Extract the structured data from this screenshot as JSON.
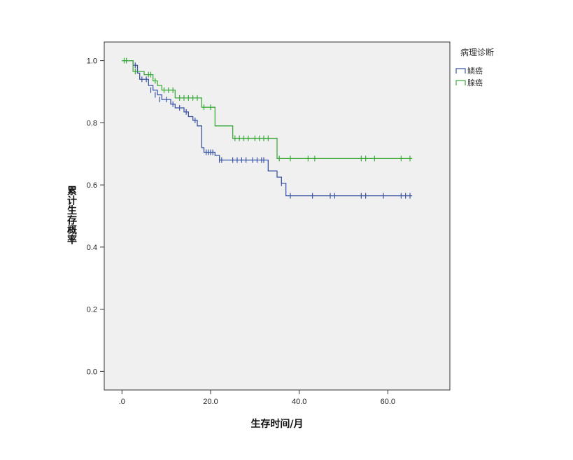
{
  "chart_data": {
    "type": "line",
    "subtype": "kaplan-meier",
    "title": "",
    "xlabel": "生存时间/月",
    "ylabel": "累计生存概率",
    "xlim": [
      -4,
      74
    ],
    "ylim": [
      -0.06,
      1.06
    ],
    "xticks": [
      0,
      20,
      40,
      60
    ],
    "xtick_labels": [
      ".0",
      "20.0",
      "40.0",
      "60.0"
    ],
    "yticks": [
      0,
      0.2,
      0.4,
      0.6,
      0.8,
      1.0
    ],
    "ytick_labels": [
      "0.0",
      "0.2",
      "0.4",
      "0.6",
      "0.8",
      "1.0"
    ],
    "grid": false,
    "legend": {
      "title": "病理诊断",
      "position": "top-right"
    },
    "series": [
      {
        "name": "鳞癌",
        "color": "#3b55a5",
        "steps": [
          [
            0,
            1.0
          ],
          [
            2.5,
            0.985
          ],
          [
            3.5,
            0.96
          ],
          [
            4,
            0.94
          ],
          [
            6,
            0.92
          ],
          [
            7,
            0.905
          ],
          [
            8,
            0.89
          ],
          [
            9,
            0.875
          ],
          [
            11,
            0.86
          ],
          [
            12,
            0.848
          ],
          [
            14,
            0.835
          ],
          [
            15,
            0.82
          ],
          [
            16,
            0.808
          ],
          [
            17,
            0.79
          ],
          [
            18,
            0.72
          ],
          [
            18.5,
            0.705
          ],
          [
            21,
            0.695
          ],
          [
            22,
            0.68
          ],
          [
            33,
            0.645
          ],
          [
            35,
            0.625
          ],
          [
            36,
            0.605
          ],
          [
            37,
            0.565
          ],
          [
            65.5,
            0.565
          ]
        ],
        "censored": [
          [
            3,
            0.985
          ],
          [
            4.5,
            0.94
          ],
          [
            5.5,
            0.94
          ],
          [
            6.5,
            0.905
          ],
          [
            7.5,
            0.89
          ],
          [
            8.5,
            0.875
          ],
          [
            10,
            0.875
          ],
          [
            11.5,
            0.86
          ],
          [
            13,
            0.848
          ],
          [
            14.5,
            0.835
          ],
          [
            16.5,
            0.808
          ],
          [
            19,
            0.705
          ],
          [
            19.5,
            0.705
          ],
          [
            20,
            0.705
          ],
          [
            20.5,
            0.705
          ],
          [
            22,
            0.68
          ],
          [
            22.5,
            0.68
          ],
          [
            25,
            0.68
          ],
          [
            26,
            0.68
          ],
          [
            27,
            0.68
          ],
          [
            28,
            0.68
          ],
          [
            29.5,
            0.68
          ],
          [
            30.5,
            0.68
          ],
          [
            31.5,
            0.68
          ],
          [
            32,
            0.68
          ],
          [
            36,
            0.605
          ],
          [
            38,
            0.565
          ],
          [
            43,
            0.565
          ],
          [
            47,
            0.565
          ],
          [
            48,
            0.565
          ],
          [
            54,
            0.565
          ],
          [
            55,
            0.565
          ],
          [
            59,
            0.565
          ],
          [
            63,
            0.565
          ],
          [
            64,
            0.565
          ],
          [
            65,
            0.565
          ]
        ]
      },
      {
        "name": "腺癌",
        "color": "#3daa3d",
        "steps": [
          [
            0,
            1.0
          ],
          [
            2.5,
            0.965
          ],
          [
            5,
            0.955
          ],
          [
            7,
            0.935
          ],
          [
            8,
            0.92
          ],
          [
            9,
            0.905
          ],
          [
            12,
            0.88
          ],
          [
            18,
            0.85
          ],
          [
            21,
            0.79
          ],
          [
            25,
            0.75
          ],
          [
            35,
            0.685
          ],
          [
            65.5,
            0.685
          ]
        ],
        "censored": [
          [
            0.5,
            1.0
          ],
          [
            1,
            1.0
          ],
          [
            3,
            0.965
          ],
          [
            6,
            0.955
          ],
          [
            6.5,
            0.955
          ],
          [
            7.5,
            0.935
          ],
          [
            9.5,
            0.905
          ],
          [
            10.5,
            0.905
          ],
          [
            11.5,
            0.905
          ],
          [
            13,
            0.88
          ],
          [
            14,
            0.88
          ],
          [
            15,
            0.88
          ],
          [
            16,
            0.88
          ],
          [
            17,
            0.88
          ],
          [
            18.5,
            0.85
          ],
          [
            20,
            0.85
          ],
          [
            25.5,
            0.75
          ],
          [
            26.5,
            0.75
          ],
          [
            27.5,
            0.75
          ],
          [
            28.5,
            0.75
          ],
          [
            30,
            0.75
          ],
          [
            31,
            0.75
          ],
          [
            32,
            0.75
          ],
          [
            33,
            0.75
          ],
          [
            35.5,
            0.685
          ],
          [
            38,
            0.685
          ],
          [
            42,
            0.685
          ],
          [
            43.5,
            0.685
          ],
          [
            54,
            0.685
          ],
          [
            55,
            0.685
          ],
          [
            57,
            0.685
          ],
          [
            63,
            0.685
          ],
          [
            65,
            0.685
          ]
        ]
      }
    ]
  }
}
